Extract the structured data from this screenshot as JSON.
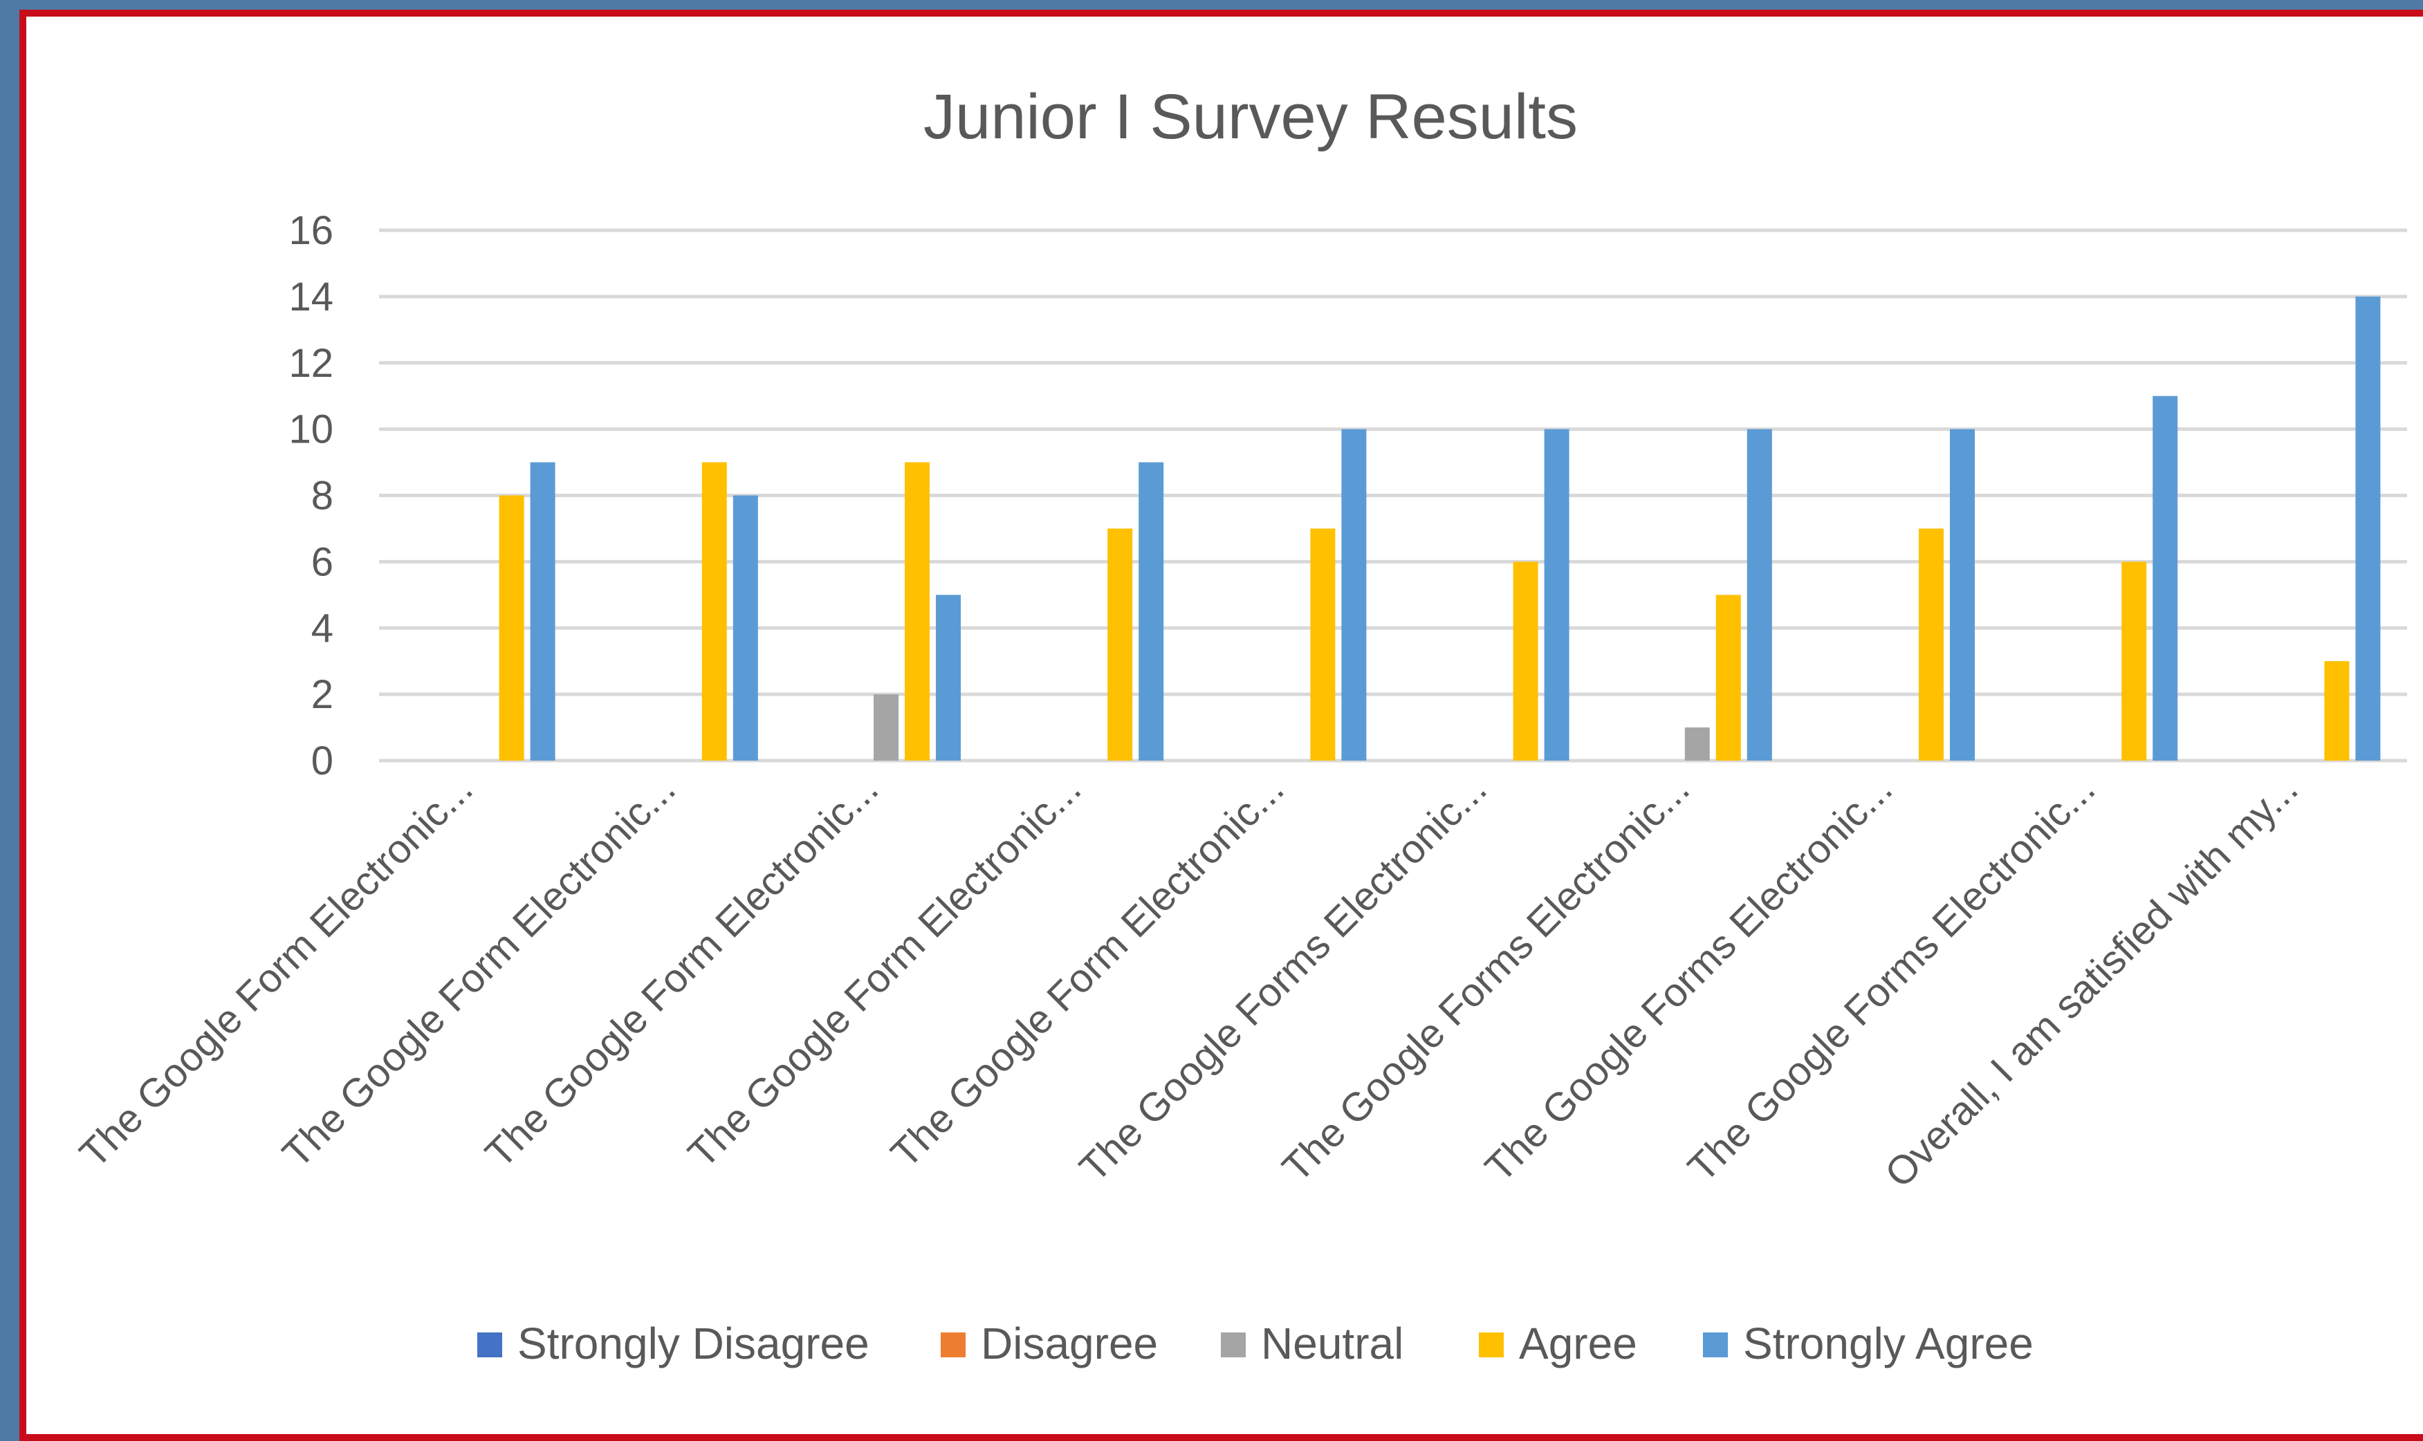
{
  "chart_data": {
    "type": "bar",
    "title": "Junior I Survey Results",
    "xlabel": "",
    "ylabel": "",
    "ylim": [
      0,
      16
    ],
    "yticks": [
      0,
      2,
      4,
      6,
      8,
      10,
      12,
      14,
      16
    ],
    "grid": true,
    "legend_position": "bottom",
    "categories": [
      "The Google Form Electronic...",
      "The Google Form Electronic...",
      "The Google Form Electronic...",
      "The Google Form Electronic...",
      "The Google Form Electronic...",
      "The Google Forms Electronic...",
      "The Google Forms Electronic...",
      "The Google Forms Electronic...",
      "The Google Forms Electronic...",
      "Overall, I am satisfied with my..."
    ],
    "series": [
      {
        "name": "Strongly Disagree",
        "color": "#4472c4",
        "values": [
          0,
          0,
          0,
          0,
          0,
          0,
          0,
          0,
          0,
          0
        ]
      },
      {
        "name": "Disagree",
        "color": "#ed7d31",
        "values": [
          0,
          0,
          0,
          0,
          0,
          0,
          0,
          0,
          0,
          0
        ]
      },
      {
        "name": "Neutral",
        "color": "#a5a5a5",
        "values": [
          0,
          0,
          2,
          0,
          0,
          0,
          1,
          0,
          0,
          0
        ]
      },
      {
        "name": "Agree",
        "color": "#ffc000",
        "values": [
          8,
          9,
          9,
          7,
          7,
          6,
          5,
          7,
          6,
          3
        ]
      },
      {
        "name": "Strongly Agree",
        "color": "#5b9bd5",
        "values": [
          9,
          8,
          5,
          9,
          10,
          10,
          10,
          10,
          11,
          14
        ]
      }
    ]
  },
  "colors": {
    "background": "#4e7aa5",
    "panel_border": "#c80c1a",
    "gridline": "#d9d9d9",
    "text": "#595959"
  }
}
